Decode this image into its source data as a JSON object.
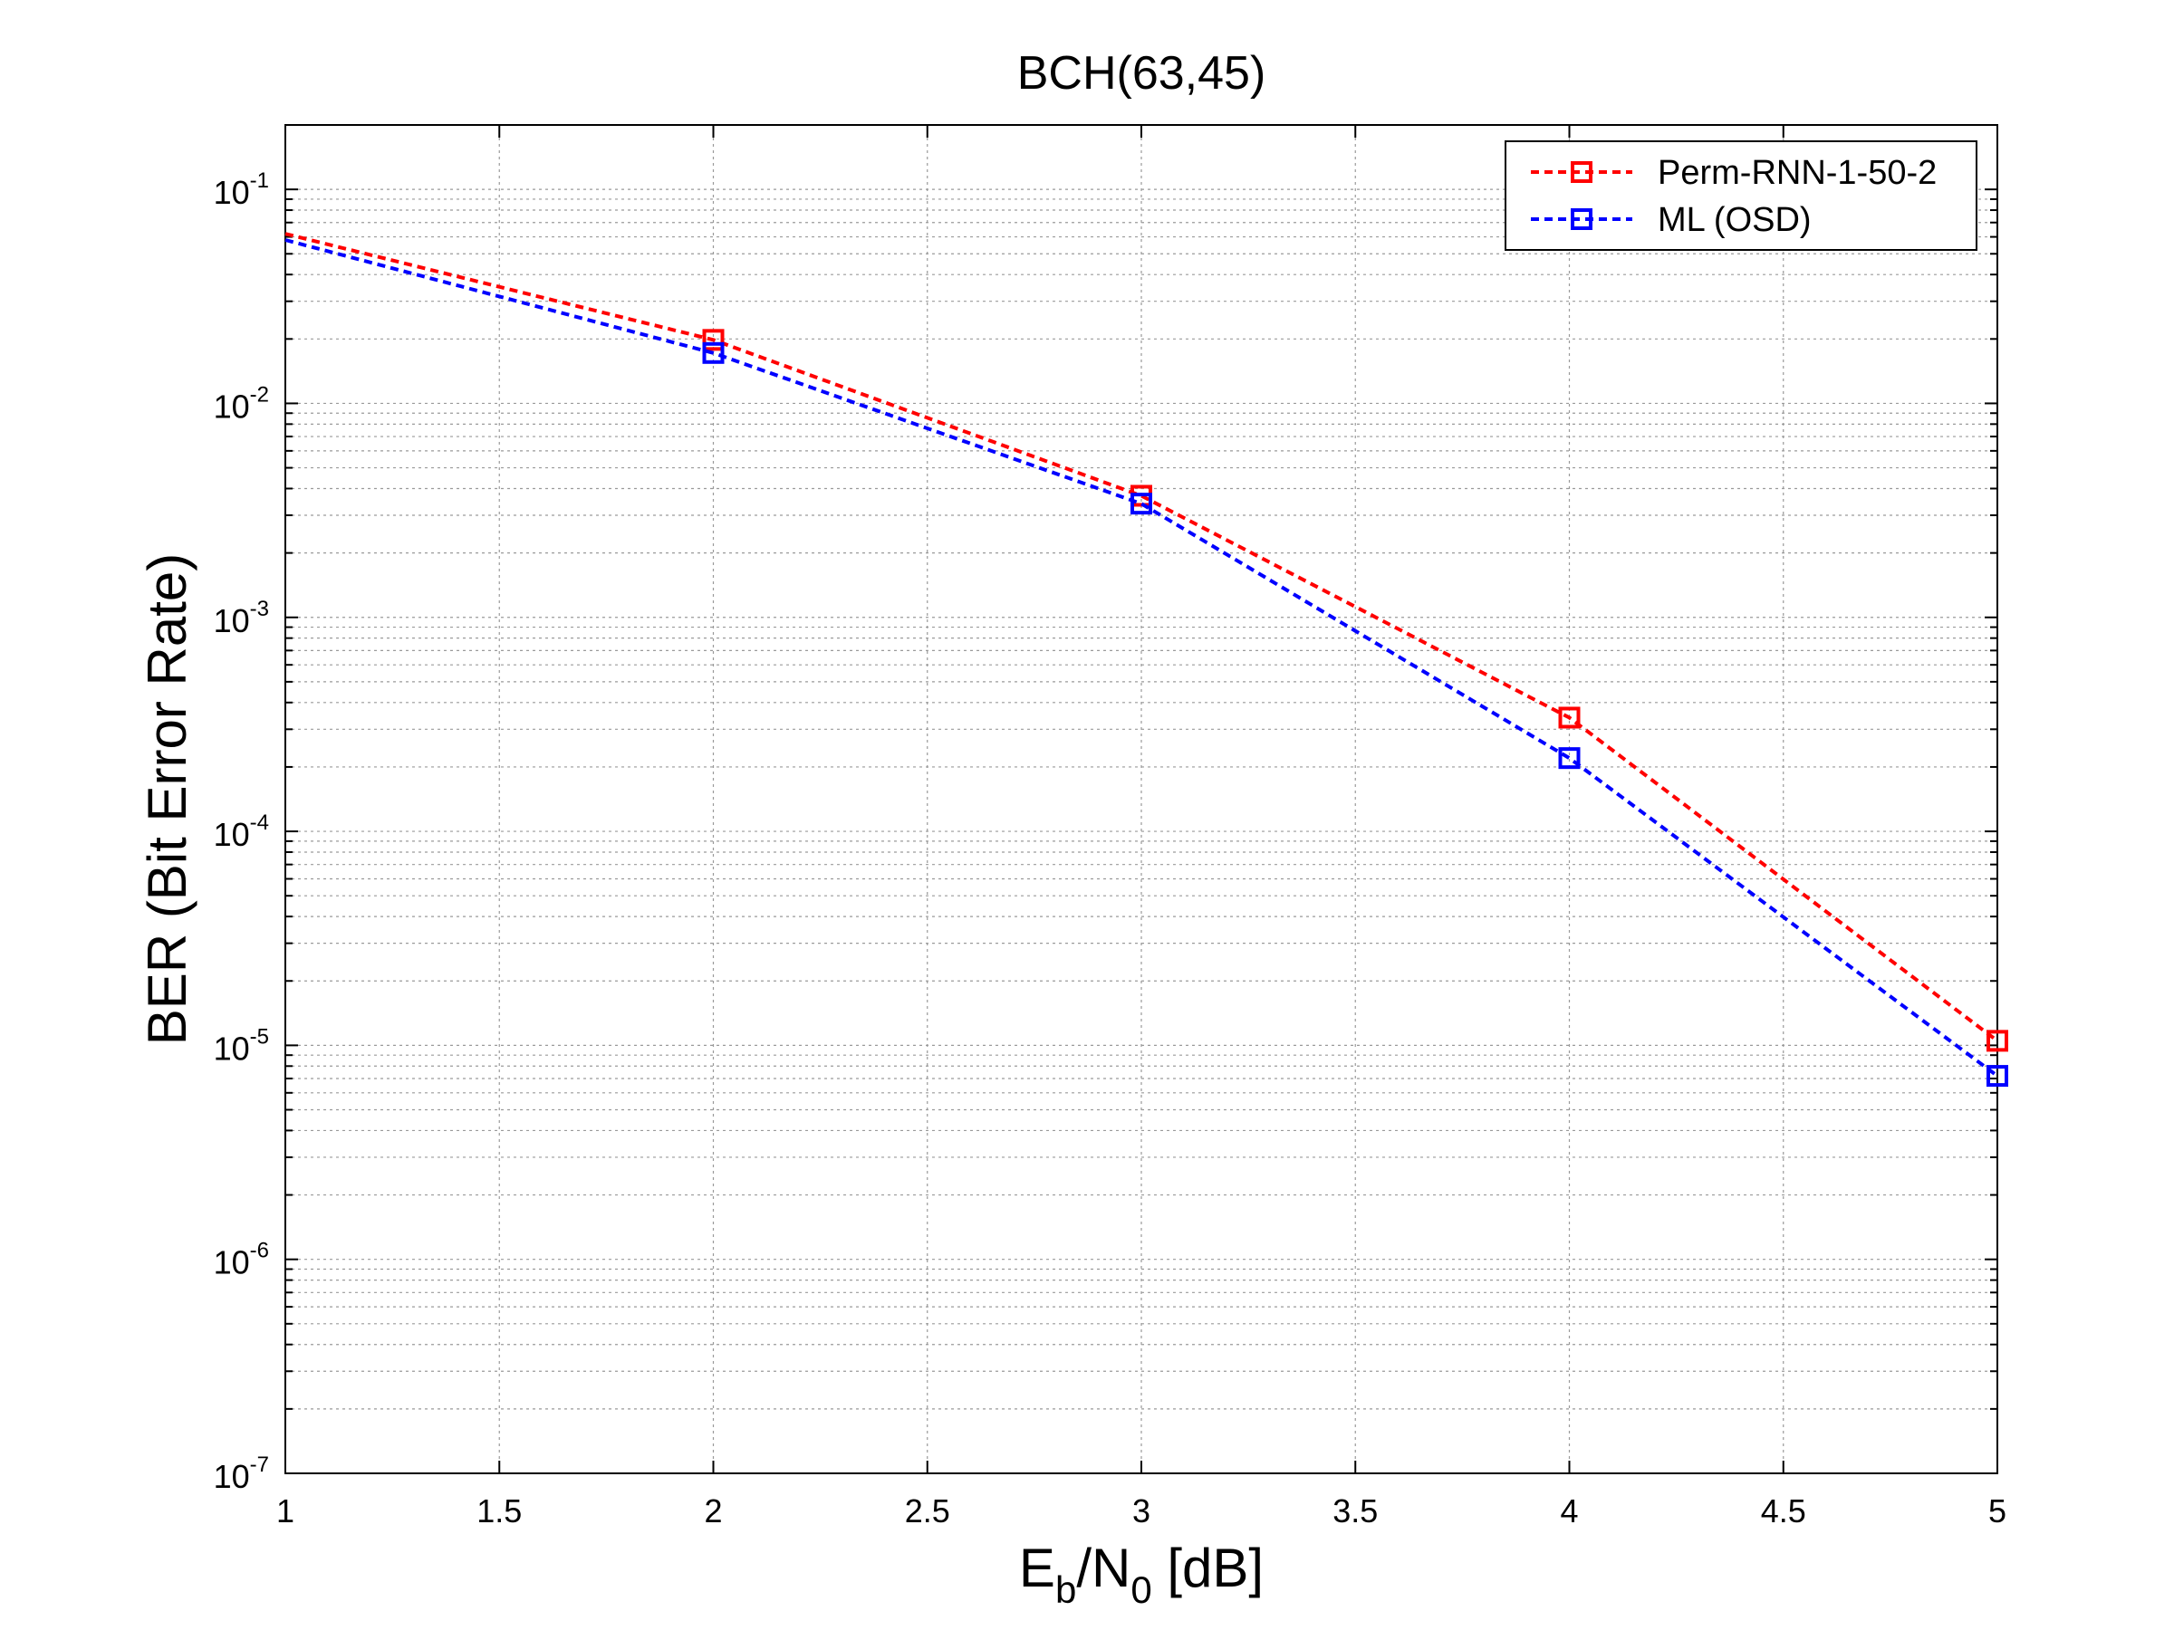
{
  "chart_data": {
    "type": "line",
    "title": "BCH(63,45)",
    "xlabel": {
      "main": "E",
      "sub1": "b",
      "mid": "/N",
      "sub2": "0",
      "tail": " [dB]"
    },
    "ylabel": "BER (Bit Error Rate)",
    "xlim": [
      1,
      5
    ],
    "ylim": [
      1e-07,
      0.2
    ],
    "yscale": "log",
    "grid": true,
    "legend_position": "top-right",
    "x_ticks": [
      {
        "value": 1,
        "label": "1"
      },
      {
        "value": 1.5,
        "label": "1.5"
      },
      {
        "value": 2,
        "label": "2"
      },
      {
        "value": 2.5,
        "label": "2.5"
      },
      {
        "value": 3,
        "label": "3"
      },
      {
        "value": 3.5,
        "label": "3.5"
      },
      {
        "value": 4,
        "label": "4"
      },
      {
        "value": 4.5,
        "label": "4.5"
      },
      {
        "value": 5,
        "label": "5"
      }
    ],
    "y_ticks": [
      {
        "value": 0.1,
        "base": "10",
        "exp": "-1"
      },
      {
        "value": 0.01,
        "base": "10",
        "exp": "-2"
      },
      {
        "value": 0.001,
        "base": "10",
        "exp": "-3"
      },
      {
        "value": 0.0001,
        "base": "10",
        "exp": "-4"
      },
      {
        "value": 1e-05,
        "base": "10",
        "exp": "-5"
      },
      {
        "value": 1e-06,
        "base": "10",
        "exp": "-6"
      },
      {
        "value": 1e-07,
        "base": "10",
        "exp": "-7"
      }
    ],
    "series": [
      {
        "name": "Perm-RNN-1-50-2",
        "color": "#ff0000",
        "marker": "square",
        "x": [
          1,
          2,
          3,
          4,
          5
        ],
        "y": [
          0.062,
          0.0198,
          0.0037,
          0.00034,
          1.05e-05
        ],
        "marker_x": [
          2,
          3,
          4,
          5
        ]
      },
      {
        "name": "ML (OSD)",
        "color": "#0000ff",
        "marker": "square",
        "x": [
          1,
          2,
          3,
          4,
          5
        ],
        "y": [
          0.058,
          0.0172,
          0.0034,
          0.00022,
          7.2e-06
        ],
        "marker_x": [
          2,
          3,
          4,
          5
        ]
      }
    ]
  }
}
